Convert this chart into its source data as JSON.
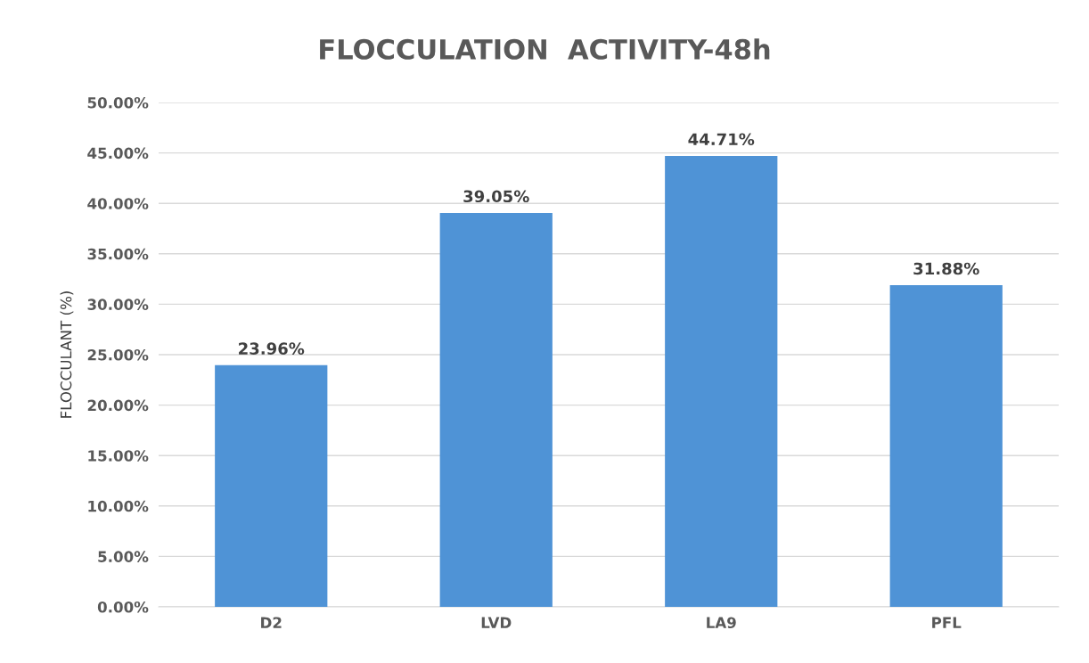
{
  "chart_data": {
    "type": "bar",
    "title": "FLOCCULATION  ACTIVITY-48h",
    "ylabel": "FLOCCULANT (%)",
    "categories": [
      "D2",
      "LVD",
      "LA9",
      "PFL"
    ],
    "values": [
      23.96,
      39.05,
      44.71,
      31.88
    ],
    "value_labels": [
      "23.96%",
      "39.05%",
      "44.71%",
      "31.88%"
    ],
    "color": "#4f93d6",
    "ylim": [
      0,
      50
    ],
    "yticks": [
      {
        "value": 0,
        "label": "0.00%"
      },
      {
        "value": 5,
        "label": "5.00%"
      },
      {
        "value": 10,
        "label": "10.00%"
      },
      {
        "value": 15,
        "label": "15.00%"
      },
      {
        "value": 20,
        "label": "20.00%"
      },
      {
        "value": 25,
        "label": "25.00%"
      },
      {
        "value": 30,
        "label": "30.00%"
      },
      {
        "value": 35,
        "label": "35.00%"
      },
      {
        "value": 40,
        "label": "40.00%"
      },
      {
        "value": 45,
        "label": "45.00%"
      },
      {
        "value": 50,
        "label": "50.00%"
      }
    ],
    "grid": "y"
  }
}
